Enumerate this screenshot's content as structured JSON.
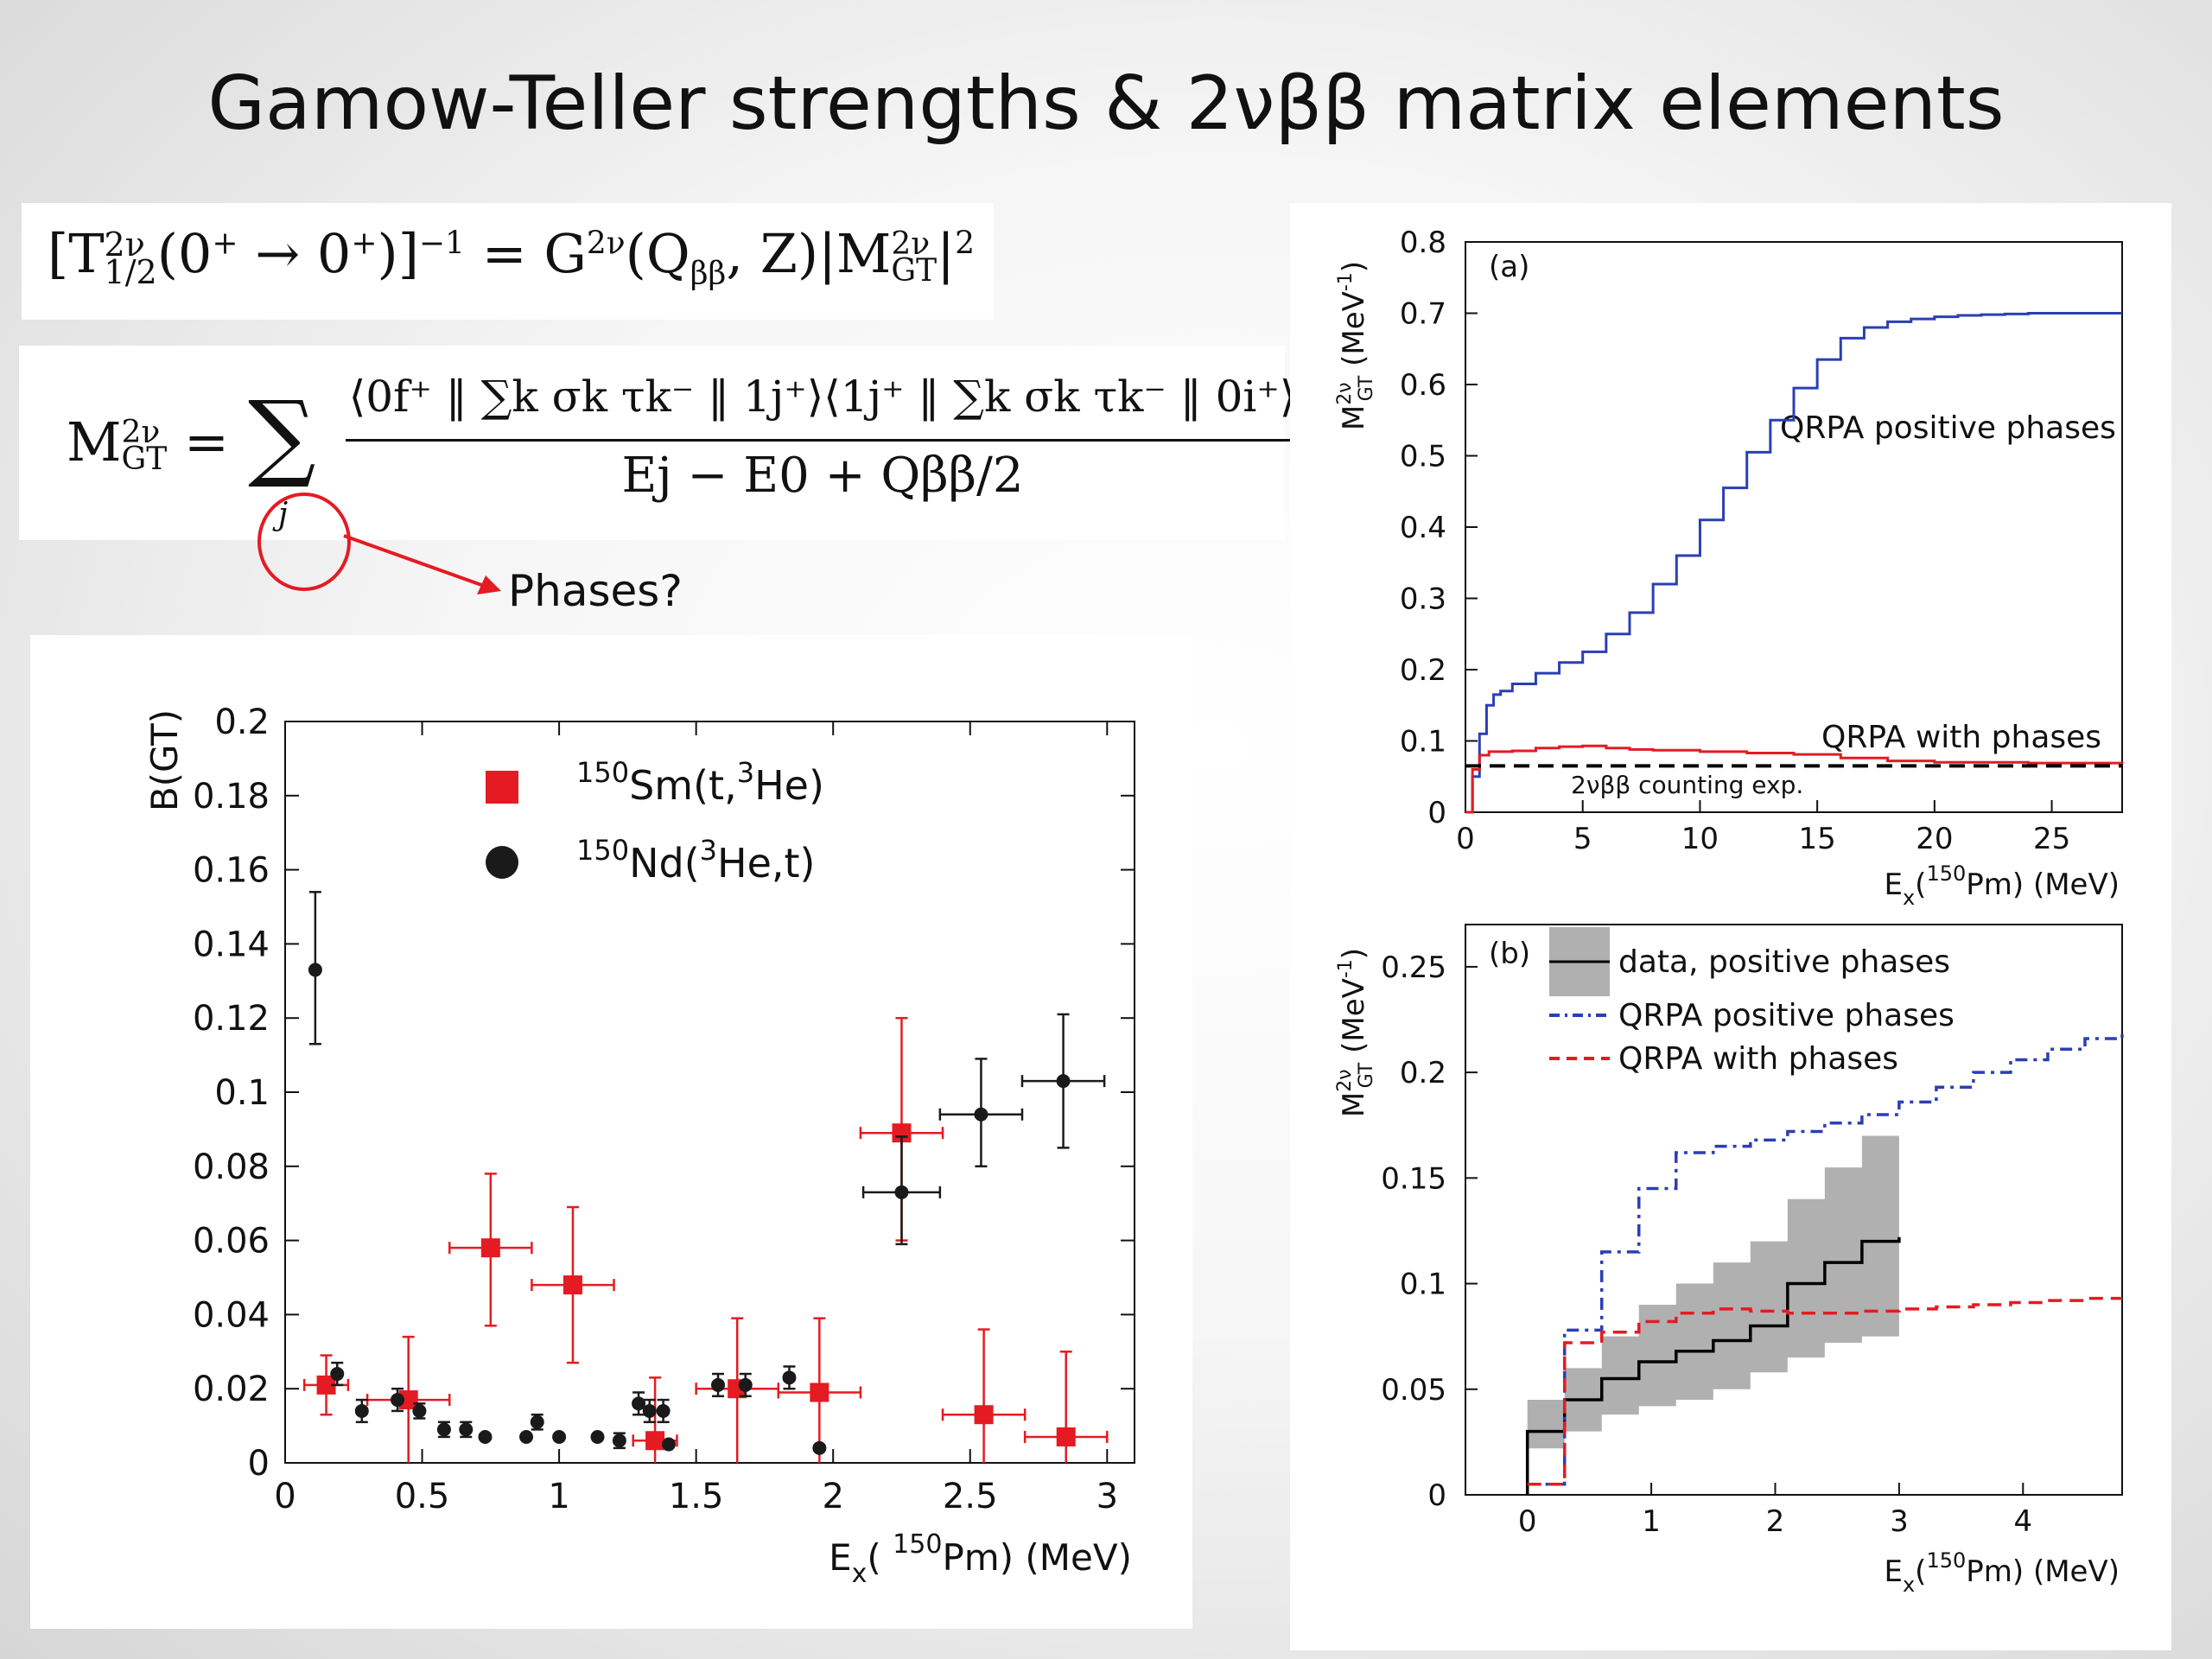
{
  "slide": {
    "title": "Gamow-Teller strengths & 2νββ matrix elements",
    "callout": "Phases?",
    "accent_red": "#e41b23",
    "equation_1": {
      "lhs": "[T",
      "lhs_sup": "2ν",
      "lhs_sub": "1/2",
      "lhs_arg": "(0",
      "lhs_arg_sup1": "+",
      "arrow": " → 0",
      "lhs_arg_sup2": "+",
      "lhs_close": ")]",
      "lhs_power": "−1",
      "equals": "= G",
      "g_sup": "2ν",
      "g_arg": "(Q",
      "q_sub": "ββ",
      "g_rest": ", Z)|M",
      "m_sup": "2ν",
      "m_sub": "GT",
      "bar": "|",
      "power": "2"
    },
    "equation_2": {
      "lhs": "M",
      "lhs_sup": "2ν",
      "lhs_sub": "GT",
      "equals": "=",
      "sum": "∑",
      "sum_index": "j",
      "numerator": "⟨0f⁺ ‖ ∑k σk τk⁻ ‖ 1j⁺⟩⟨1j⁺ ‖ ∑k σk τk⁻ ‖ 0i⁺⟩",
      "denominator": "Ej − E0 + Qββ/2"
    }
  },
  "left_chart_labels": {
    "ylabel": "B(GT)",
    "xlabel_main": "E",
    "xlabel_sub": "x",
    "xlabel_paren_open": "( ",
    "xlabel_sup": "150",
    "xlabel_rest": "Pm) (MeV)",
    "legend_sm_sup": "150",
    "legend_sm": "Sm(t,",
    "legend_sm_sup2": "3",
    "legend_sm_rest": "He)",
    "legend_nd_sup": "150",
    "legend_nd": "Nd(",
    "legend_nd_sup2": "3",
    "legend_nd_rest": "He,t)",
    "xticks": [
      "0",
      "0.5",
      "1",
      "1.5",
      "2",
      "2.5",
      "3"
    ],
    "yticks": [
      "0",
      "0.02",
      "0.04",
      "0.06",
      "0.08",
      "0.1",
      "0.12",
      "0.14",
      "0.16",
      "0.18",
      "0.2"
    ]
  },
  "right_a_labels": {
    "panel": "(a)",
    "ylabel_main": "M",
    "ylabel_sup": "2ν",
    "ylabel_sub": "GT",
    "ylabel_unit": " (MeV",
    "ylabel_unit_sup": "-1",
    "ylabel_unit_close": ")",
    "xlabel_main": "E",
    "xlabel_sub": "x",
    "xlabel_paren": "(",
    "xlabel_sup": "150",
    "xlabel_rest": "Pm) (MeV)",
    "series_pos": "QRPA positive phases",
    "series_with": "QRPA with phases",
    "series_exp": "2νββ counting exp.",
    "xticks": [
      "0",
      "5",
      "10",
      "15",
      "20",
      "25"
    ],
    "yticks": [
      "0",
      "0.1",
      "0.2",
      "0.3",
      "0.4",
      "0.5",
      "0.6",
      "0.7",
      "0.8"
    ]
  },
  "right_b_labels": {
    "panel": "(b)",
    "ylabel_main": "M",
    "ylabel_sup": "2ν",
    "ylabel_sub": "GT",
    "ylabel_unit": " (MeV",
    "ylabel_unit_sup": "-1",
    "ylabel_unit_close": ")",
    "xlabel_main": "E",
    "xlabel_sub": "x",
    "xlabel_paren": "(",
    "xlabel_sup": "150",
    "xlabel_rest": "Pm) (MeV)",
    "legend_data": "data, positive phases",
    "legend_pos": "QRPA positive phases",
    "legend_with": "QRPA with phases",
    "xticks": [
      "0",
      "1",
      "2",
      "3",
      "4"
    ],
    "yticks": [
      "0",
      "0.05",
      "0.1",
      "0.15",
      "0.2",
      "0.25"
    ]
  },
  "chart_data": [
    {
      "type": "scatter",
      "xlabel": "Ex( 150Pm) (MeV)",
      "ylabel": "B(GT)",
      "xlim": [
        0,
        3.1
      ],
      "ylim": [
        0,
        0.2
      ],
      "legend_placement": "top-center",
      "series": [
        {
          "name": "150Sm(t,3He)",
          "marker": "square",
          "color": "#e41b23",
          "points": [
            {
              "x": 0.15,
              "y": 0.021,
              "xerr": 0.08,
              "ylo": 0.013,
              "yhi": 0.029
            },
            {
              "x": 0.45,
              "y": 0.017,
              "xerr": 0.15,
              "ylo": 0.0,
              "yhi": 0.034
            },
            {
              "x": 0.75,
              "y": 0.058,
              "xerr": 0.15,
              "ylo": 0.037,
              "yhi": 0.078
            },
            {
              "x": 1.05,
              "y": 0.048,
              "xerr": 0.15,
              "ylo": 0.027,
              "yhi": 0.069
            },
            {
              "x": 1.35,
              "y": 0.006,
              "xerr": 0.08,
              "ylo": 0.0,
              "yhi": 0.023
            },
            {
              "x": 1.65,
              "y": 0.02,
              "xerr": 0.15,
              "ylo": 0.0,
              "yhi": 0.039
            },
            {
              "x": 1.95,
              "y": 0.019,
              "xerr": 0.15,
              "ylo": 0.0,
              "yhi": 0.039
            },
            {
              "x": 2.25,
              "y": 0.089,
              "xerr": 0.15,
              "ylo": 0.06,
              "yhi": 0.12
            },
            {
              "x": 2.55,
              "y": 0.013,
              "xerr": 0.15,
              "ylo": 0.0,
              "yhi": 0.036
            },
            {
              "x": 2.85,
              "y": 0.007,
              "xerr": 0.15,
              "ylo": 0.0,
              "yhi": 0.03
            }
          ]
        },
        {
          "name": "150Nd(3He,t)",
          "marker": "circle",
          "color": "#1a1a1a",
          "points": [
            {
              "x": 0.11,
              "y": 0.133,
              "xerr": 0,
              "ylo": 0.113,
              "yhi": 0.154
            },
            {
              "x": 0.19,
              "y": 0.024,
              "xerr": 0,
              "ylo": 0.021,
              "yhi": 0.027
            },
            {
              "x": 0.28,
              "y": 0.014,
              "xerr": 0,
              "ylo": 0.011,
              "yhi": 0.017
            },
            {
              "x": 0.41,
              "y": 0.017,
              "xerr": 0,
              "ylo": 0.014,
              "yhi": 0.02
            },
            {
              "x": 0.49,
              "y": 0.014,
              "xerr": 0,
              "ylo": 0.012,
              "yhi": 0.016
            },
            {
              "x": 0.58,
              "y": 0.009,
              "xerr": 0,
              "ylo": 0.007,
              "yhi": 0.011
            },
            {
              "x": 0.66,
              "y": 0.009,
              "xerr": 0,
              "ylo": 0.007,
              "yhi": 0.011
            },
            {
              "x": 0.73,
              "y": 0.007,
              "xerr": 0,
              "ylo": 0.0065,
              "yhi": 0.0075
            },
            {
              "x": 0.88,
              "y": 0.007,
              "xerr": 0,
              "ylo": 0.0065,
              "yhi": 0.0075
            },
            {
              "x": 0.92,
              "y": 0.011,
              "xerr": 0,
              "ylo": 0.009,
              "yhi": 0.013
            },
            {
              "x": 1.0,
              "y": 0.007,
              "xerr": 0,
              "ylo": 0.0065,
              "yhi": 0.0075
            },
            {
              "x": 1.14,
              "y": 0.007,
              "xerr": 0,
              "ylo": 0.0065,
              "yhi": 0.0075
            },
            {
              "x": 1.22,
              "y": 0.006,
              "xerr": 0,
              "ylo": 0.004,
              "yhi": 0.008
            },
            {
              "x": 1.29,
              "y": 0.016,
              "xerr": 0,
              "ylo": 0.013,
              "yhi": 0.019
            },
            {
              "x": 1.33,
              "y": 0.014,
              "xerr": 0,
              "ylo": 0.011,
              "yhi": 0.017
            },
            {
              "x": 1.38,
              "y": 0.014,
              "xerr": 0,
              "ylo": 0.011,
              "yhi": 0.017
            },
            {
              "x": 1.4,
              "y": 0.005,
              "xerr": 0,
              "ylo": 0.0045,
              "yhi": 0.0055
            },
            {
              "x": 1.58,
              "y": 0.021,
              "xerr": 0,
              "ylo": 0.018,
              "yhi": 0.024
            },
            {
              "x": 1.68,
              "y": 0.021,
              "xerr": 0,
              "ylo": 0.018,
              "yhi": 0.024
            },
            {
              "x": 1.84,
              "y": 0.023,
              "xerr": 0,
              "ylo": 0.02,
              "yhi": 0.026
            },
            {
              "x": 1.95,
              "y": 0.004,
              "xerr": 0,
              "ylo": 0.0035,
              "yhi": 0.0045
            },
            {
              "x": 2.25,
              "y": 0.073,
              "xerr": 0.14,
              "ylo": 0.059,
              "yhi": 0.088
            },
            {
              "x": 2.54,
              "y": 0.094,
              "xerr": 0.15,
              "ylo": 0.08,
              "yhi": 0.109
            },
            {
              "x": 2.84,
              "y": 0.103,
              "xerr": 0.15,
              "ylo": 0.085,
              "yhi": 0.121
            }
          ]
        }
      ]
    },
    {
      "type": "line",
      "panel": "(a)",
      "xlabel": "Ex(150Pm) (MeV)",
      "ylabel": "M2νGT (MeV-1)",
      "xlim": [
        0,
        28
      ],
      "ylim": [
        0,
        0.8
      ],
      "series": [
        {
          "name": "QRPA positive phases",
          "color": "#2b3fb4",
          "style": "step",
          "x": [
            0,
            0.3,
            0.6,
            0.9,
            1.2,
            1.5,
            2,
            3,
            4,
            5,
            6,
            7,
            8,
            9,
            10,
            11,
            12,
            13,
            14,
            15,
            16,
            17,
            18,
            19,
            20,
            21,
            22,
            23,
            24,
            25,
            26,
            27,
            28
          ],
          "y": [
            0,
            0.05,
            0.11,
            0.15,
            0.165,
            0.17,
            0.18,
            0.195,
            0.21,
            0.225,
            0.25,
            0.28,
            0.32,
            0.36,
            0.41,
            0.455,
            0.505,
            0.55,
            0.595,
            0.635,
            0.665,
            0.68,
            0.688,
            0.692,
            0.695,
            0.697,
            0.698,
            0.699,
            0.7,
            0.7,
            0.7,
            0.7,
            0.7
          ]
        },
        {
          "name": "QRPA with phases",
          "color": "#e41b23",
          "style": "step",
          "x": [
            0,
            0.3,
            0.6,
            1,
            2,
            3,
            4,
            5,
            6,
            7,
            8,
            10,
            12,
            14,
            16,
            18,
            20,
            22,
            24,
            26,
            28
          ],
          "y": [
            0,
            0.06,
            0.08,
            0.085,
            0.086,
            0.09,
            0.092,
            0.093,
            0.09,
            0.088,
            0.087,
            0.085,
            0.083,
            0.081,
            0.076,
            0.072,
            0.07,
            0.07,
            0.069,
            0.069,
            0.068
          ]
        },
        {
          "name": "2νββ counting exp.",
          "color": "#000000",
          "style": "dashed",
          "x": [
            0,
            28
          ],
          "y": [
            0.065,
            0.065
          ]
        }
      ]
    },
    {
      "type": "line",
      "panel": "(b)",
      "xlabel": "Ex(150Pm) (MeV)",
      "ylabel": "M2νGT (MeV-1)",
      "xlim": [
        -0.5,
        4.8
      ],
      "ylim": [
        0,
        0.27
      ],
      "legend_placement": "top-left",
      "series": [
        {
          "name": "data, positive phases",
          "color": "#000000",
          "band_color": "#b0b0b0",
          "style": "step",
          "x": [
            0,
            0.3,
            0.6,
            0.9,
            1.2,
            1.5,
            1.8,
            2.1,
            2.4,
            2.7,
            3.0
          ],
          "y": [
            0.03,
            0.045,
            0.055,
            0.063,
            0.068,
            0.073,
            0.08,
            0.1,
            0.11,
            0.12,
            0.122
          ],
          "band_lo": [
            0.01,
            0.022,
            0.03,
            0.038,
            0.042,
            0.045,
            0.05,
            0.058,
            0.065,
            0.072,
            0.075
          ],
          "band_hi": [
            0.045,
            0.06,
            0.075,
            0.09,
            0.1,
            0.11,
            0.12,
            0.14,
            0.155,
            0.17,
            0.175
          ]
        },
        {
          "name": "QRPA positive phases",
          "color": "#2b3fb4",
          "style": "dashdot-step",
          "x": [
            0,
            0.3,
            0.6,
            0.9,
            1.2,
            1.5,
            1.8,
            2.1,
            2.4,
            2.7,
            3.0,
            3.3,
            3.6,
            3.9,
            4.2,
            4.5,
            4.8
          ],
          "y": [
            0.005,
            0.078,
            0.115,
            0.145,
            0.162,
            0.165,
            0.168,
            0.172,
            0.176,
            0.18,
            0.186,
            0.193,
            0.2,
            0.206,
            0.211,
            0.216,
            0.22
          ]
        },
        {
          "name": "QRPA with phases",
          "color": "#e41b23",
          "style": "dashed-step",
          "x": [
            0,
            0.3,
            0.6,
            0.9,
            1.2,
            1.5,
            1.8,
            2.1,
            2.4,
            2.7,
            3.0,
            3.3,
            3.6,
            3.9,
            4.2,
            4.5,
            4.8
          ],
          "y": [
            0.005,
            0.072,
            0.077,
            0.082,
            0.086,
            0.088,
            0.087,
            0.086,
            0.086,
            0.087,
            0.088,
            0.089,
            0.09,
            0.091,
            0.092,
            0.093,
            0.093
          ]
        }
      ]
    }
  ]
}
